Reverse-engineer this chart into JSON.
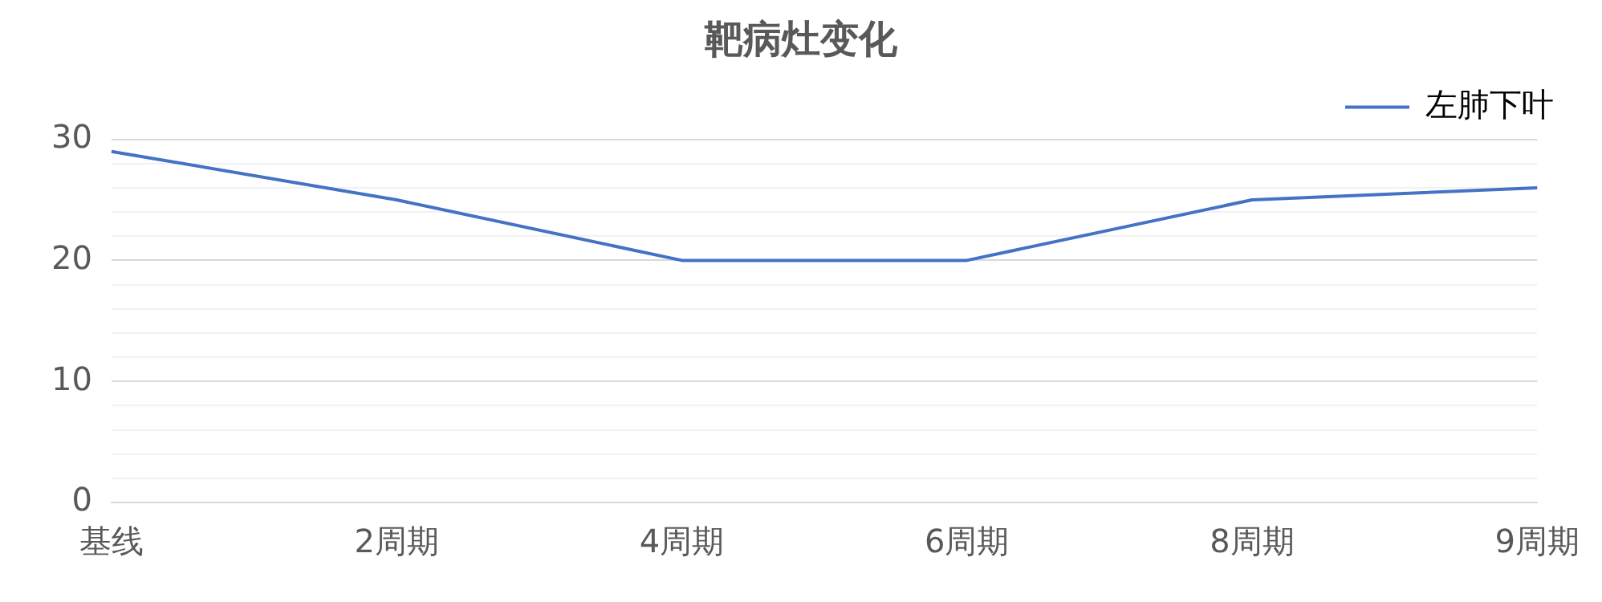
{
  "chart_data": {
    "type": "line",
    "title": "靶病灶变化",
    "categories": [
      "基线",
      "2周期",
      "4周期",
      "6周期",
      "8周期",
      "9周期"
    ],
    "series": [
      {
        "name": "左肺下叶",
        "color": "#4472c4",
        "values": [
          29,
          25,
          20,
          20,
          25,
          26
        ]
      }
    ],
    "ylim": [
      0,
      30
    ],
    "yticks": [
      0,
      {
        "value": 2,
        "label": null
      },
      {
        "value": 4,
        "label": null
      },
      {
        "value": 6,
        "label": null
      },
      {
        "value": 8,
        "label": null
      },
      10,
      {
        "value": 12,
        "label": null
      },
      {
        "value": 14,
        "label": null
      },
      {
        "value": 16,
        "label": null
      },
      {
        "value": 18,
        "label": null
      },
      20,
      {
        "value": 22,
        "label": null
      },
      {
        "value": 24,
        "label": null
      },
      {
        "value": 26,
        "label": null
      },
      {
        "value": 28,
        "label": null
      },
      30
    ],
    "grid": "y",
    "legend": "top right",
    "marker": "none",
    "line_style": "solid"
  }
}
